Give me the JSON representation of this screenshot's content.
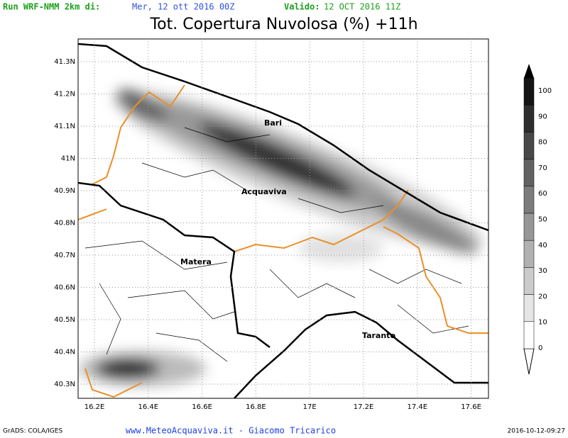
{
  "header": {
    "run_label": "Run WRF-NMM 2km di:",
    "run_date": "Mer, 12 ott 2016 00Z",
    "valid_label": "Valido:",
    "valid_date": "12 OCT 2016 11Z",
    "title": "Tot. Copertura Nuvolosa (%) +11h"
  },
  "map": {
    "lon_labels": [
      "16.2E",
      "16.4E",
      "16.6E",
      "16.8E",
      "17E",
      "17.2E",
      "17.4E",
      "17.6E"
    ],
    "lat_labels": [
      "41.3N",
      "41.2N",
      "41.1N",
      "41N",
      "40.9N",
      "40.8N",
      "40.7N",
      "40.6N",
      "40.5N",
      "40.4N",
      "40.3N"
    ],
    "cities": [
      "Bari",
      "Acquaviva",
      "Matera",
      "Taranto"
    ]
  },
  "colorbar": {
    "labels": [
      100,
      90,
      80,
      70,
      60,
      50,
      40,
      30,
      20,
      10,
      0
    ]
  },
  "footer": {
    "left": "GrADS: COLA/IGES",
    "center": "www.MeteoAcquaviva.it - Giacomo Tricarico",
    "right": "2016-10-12-09:27"
  }
}
